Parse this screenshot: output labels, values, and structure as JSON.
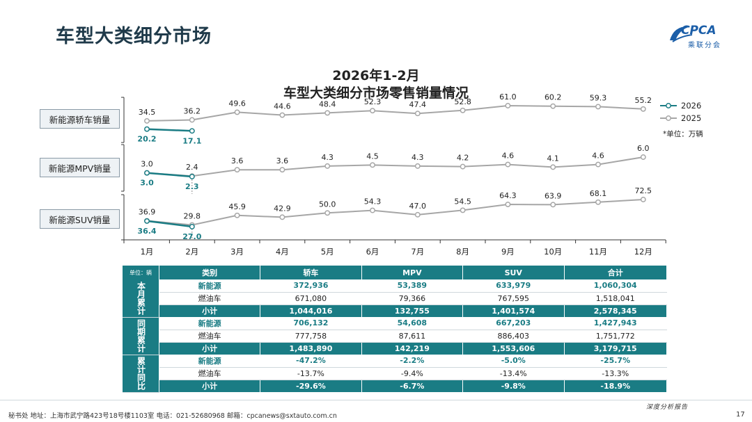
{
  "header": {
    "title": "车型大类细分市场",
    "logo_text": "CPCA",
    "logo_sub": "乘联分会"
  },
  "chart": {
    "title_line1": "2026年1-2月",
    "title_line2": "车型大类细分市场零售销量情况",
    "unit_note": "*单位：万辆"
  },
  "chart_data": {
    "type": "line",
    "categories": [
      "1月",
      "2月",
      "3月",
      "4月",
      "5月",
      "6月",
      "7月",
      "8月",
      "9月",
      "10月",
      "11月",
      "12月"
    ],
    "legend": [
      "2026",
      "2025"
    ],
    "colors": {
      "s2026": "#1a7c84",
      "s2025": "#a6a6a6"
    },
    "panels": [
      {
        "label": "新能源轿车销量",
        "series": [
          {
            "name": "2026",
            "values": [
              20.2,
              17.1
            ]
          },
          {
            "name": "2025",
            "values": [
              34.5,
              36.2,
              49.6,
              44.6,
              48.4,
              52.3,
              47.4,
              52.8,
              61.0,
              60.2,
              59.3,
              55.2
            ]
          }
        ]
      },
      {
        "label": "新能源MPV销量",
        "series": [
          {
            "name": "2026",
            "values": [
              3.0,
              2.3
            ]
          },
          {
            "name": "2025",
            "values": [
              3.0,
              2.4,
              3.6,
              3.6,
              4.3,
              4.5,
              4.3,
              4.2,
              4.6,
              4.1,
              4.6,
              6.0
            ]
          }
        ]
      },
      {
        "label": "新能源SUV销量",
        "series": [
          {
            "name": "2026",
            "values": [
              36.4,
              27.0
            ]
          },
          {
            "name": "2025",
            "values": [
              36.9,
              29.8,
              45.9,
              42.9,
              50.0,
              54.3,
              47.0,
              54.5,
              64.3,
              63.9,
              68.1,
              72.5
            ]
          }
        ]
      }
    ]
  },
  "table": {
    "unit_label": "单位：辆",
    "headers": [
      "类别",
      "轿车",
      "MPV",
      "SUV",
      "合计"
    ],
    "groups": [
      {
        "name": "本月累计",
        "rows": [
          {
            "kind": "nev",
            "cells": [
              "新能源",
              "372,936",
              "53,389",
              "633,979",
              "1,060,304"
            ]
          },
          {
            "kind": "fuel",
            "cells": [
              "燃油车",
              "671,080",
              "79,366",
              "767,595",
              "1,518,041"
            ]
          },
          {
            "kind": "sub",
            "cells": [
              "小计",
              "1,044,016",
              "132,755",
              "1,401,574",
              "2,578,345"
            ]
          }
        ]
      },
      {
        "name": "同期累计",
        "rows": [
          {
            "kind": "nev",
            "cells": [
              "新能源",
              "706,132",
              "54,608",
              "667,203",
              "1,427,943"
            ]
          },
          {
            "kind": "fuel",
            "cells": [
              "燃油车",
              "777,758",
              "87,611",
              "886,403",
              "1,751,772"
            ]
          },
          {
            "kind": "sub",
            "cells": [
              "小计",
              "1,483,890",
              "142,219",
              "1,553,606",
              "3,179,715"
            ]
          }
        ]
      },
      {
        "name": "累计同比",
        "rows": [
          {
            "kind": "nev",
            "cells": [
              "新能源",
              "-47.2%",
              "-2.2%",
              "-5.0%",
              "-25.7%"
            ]
          },
          {
            "kind": "fuel",
            "cells": [
              "燃油车",
              "-13.7%",
              "-9.4%",
              "-13.4%",
              "-13.3%"
            ]
          },
          {
            "kind": "sub",
            "cells": [
              "小计",
              "-29.6%",
              "-6.7%",
              "-9.8%",
              "-18.9%"
            ]
          }
        ]
      }
    ]
  },
  "footer": {
    "text": "秘书处   地址：上海市武宁路423号18号楼1103室   电话：021-52680968   邮箱：cpcanews@sxtauto.com.cn",
    "right": "深度分析报告",
    "page": "17"
  }
}
